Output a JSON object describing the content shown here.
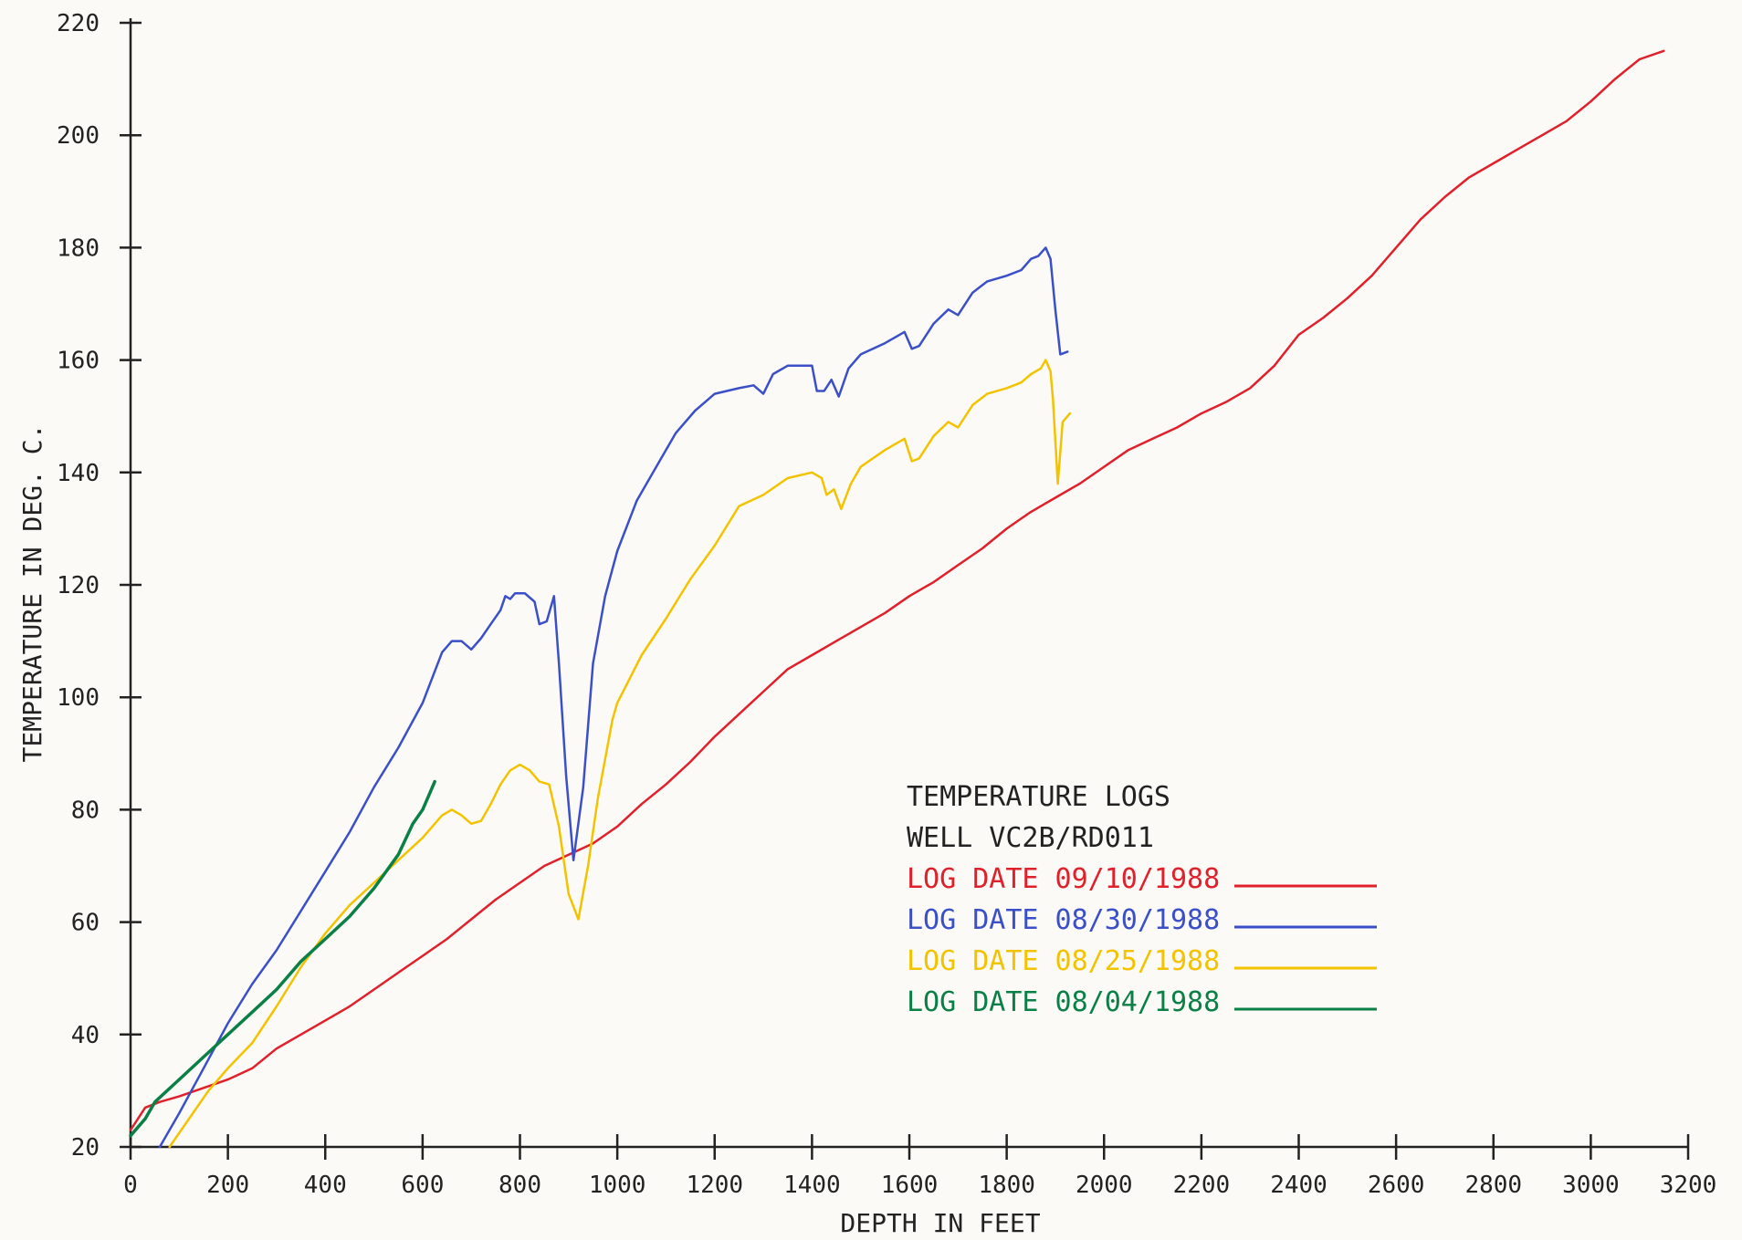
{
  "chart_data": {
    "type": "line",
    "xlabel": "DEPTH IN FEET",
    "ylabel": "TEMPERATURE IN DEG. C.",
    "xlim": [
      0,
      3200
    ],
    "ylim": [
      20,
      220
    ],
    "x_ticks": [
      0,
      200,
      400,
      600,
      800,
      1000,
      1200,
      1400,
      1600,
      1800,
      2000,
      2200,
      2400,
      2600,
      2800,
      3000,
      3200
    ],
    "y_ticks": [
      20,
      40,
      60,
      80,
      100,
      120,
      140,
      160,
      180,
      200,
      220
    ],
    "grid": false,
    "legend_title": [
      "TEMPERATURE LOGS",
      "WELL VC2B/RD011"
    ],
    "legend_placement": "lower-center-right",
    "series": [
      {
        "name": "LOG DATE 09/10/1988",
        "color": "#e0202a",
        "points": [
          [
            0,
            23
          ],
          [
            30,
            27
          ],
          [
            60,
            28
          ],
          [
            100,
            29
          ],
          [
            150,
            30.5
          ],
          [
            200,
            32
          ],
          [
            250,
            34
          ],
          [
            300,
            37.5
          ],
          [
            350,
            40
          ],
          [
            400,
            42.5
          ],
          [
            450,
            45
          ],
          [
            500,
            48
          ],
          [
            550,
            51
          ],
          [
            600,
            54
          ],
          [
            650,
            57
          ],
          [
            700,
            60.5
          ],
          [
            750,
            64
          ],
          [
            800,
            67
          ],
          [
            850,
            70
          ],
          [
            900,
            72
          ],
          [
            950,
            74
          ],
          [
            1000,
            77
          ],
          [
            1050,
            81
          ],
          [
            1100,
            84.5
          ],
          [
            1150,
            88.5
          ],
          [
            1200,
            93
          ],
          [
            1250,
            97
          ],
          [
            1300,
            101
          ],
          [
            1350,
            105
          ],
          [
            1400,
            107.5
          ],
          [
            1450,
            110
          ],
          [
            1500,
            112.5
          ],
          [
            1550,
            115
          ],
          [
            1600,
            118
          ],
          [
            1650,
            120.5
          ],
          [
            1700,
            123.5
          ],
          [
            1750,
            126.5
          ],
          [
            1800,
            130
          ],
          [
            1850,
            133
          ],
          [
            1900,
            135.5
          ],
          [
            1950,
            138
          ],
          [
            2000,
            141
          ],
          [
            2050,
            144
          ],
          [
            2100,
            146
          ],
          [
            2150,
            148
          ],
          [
            2200,
            150.5
          ],
          [
            2250,
            152.5
          ],
          [
            2300,
            155
          ],
          [
            2350,
            159
          ],
          [
            2400,
            164.5
          ],
          [
            2450,
            167.5
          ],
          [
            2500,
            171
          ],
          [
            2550,
            175
          ],
          [
            2600,
            180
          ],
          [
            2650,
            185
          ],
          [
            2700,
            189
          ],
          [
            2750,
            192.5
          ],
          [
            2800,
            195
          ],
          [
            2850,
            197.5
          ],
          [
            2900,
            200
          ],
          [
            2950,
            202.5
          ],
          [
            3000,
            206
          ],
          [
            3050,
            210
          ],
          [
            3100,
            213.5
          ],
          [
            3150,
            215
          ]
        ]
      },
      {
        "name": "LOG DATE 08/30/1988",
        "color": "#3b4fc8",
        "points": [
          [
            60,
            20
          ],
          [
            100,
            26
          ],
          [
            150,
            34
          ],
          [
            200,
            42
          ],
          [
            250,
            49
          ],
          [
            300,
            55
          ],
          [
            350,
            62
          ],
          [
            400,
            69
          ],
          [
            450,
            76
          ],
          [
            500,
            84
          ],
          [
            550,
            91
          ],
          [
            600,
            99
          ],
          [
            640,
            108
          ],
          [
            660,
            110
          ],
          [
            680,
            110
          ],
          [
            700,
            108.5
          ],
          [
            720,
            110.5
          ],
          [
            740,
            113
          ],
          [
            760,
            115.5
          ],
          [
            770,
            118
          ],
          [
            780,
            117.5
          ],
          [
            790,
            118.5
          ],
          [
            810,
            118.5
          ],
          [
            830,
            117
          ],
          [
            840,
            113
          ],
          [
            855,
            113.5
          ],
          [
            870,
            118
          ],
          [
            880,
            106
          ],
          [
            895,
            86
          ],
          [
            910,
            71
          ],
          [
            930,
            84
          ],
          [
            950,
            106
          ],
          [
            975,
            118
          ],
          [
            1000,
            126
          ],
          [
            1040,
            135
          ],
          [
            1080,
            141
          ],
          [
            1120,
            147
          ],
          [
            1160,
            151
          ],
          [
            1200,
            154
          ],
          [
            1250,
            155
          ],
          [
            1280,
            155.5
          ],
          [
            1300,
            154
          ],
          [
            1320,
            157.5
          ],
          [
            1350,
            159
          ],
          [
            1400,
            159
          ],
          [
            1410,
            154.5
          ],
          [
            1425,
            154.5
          ],
          [
            1440,
            156.5
          ],
          [
            1455,
            153.5
          ],
          [
            1475,
            158.5
          ],
          [
            1500,
            161
          ],
          [
            1550,
            163
          ],
          [
            1590,
            165
          ],
          [
            1605,
            162
          ],
          [
            1620,
            162.5
          ],
          [
            1650,
            166.5
          ],
          [
            1680,
            169
          ],
          [
            1700,
            168
          ],
          [
            1730,
            172
          ],
          [
            1760,
            174
          ],
          [
            1800,
            175
          ],
          [
            1830,
            176
          ],
          [
            1850,
            178
          ],
          [
            1865,
            178.5
          ],
          [
            1880,
            180
          ],
          [
            1890,
            178
          ],
          [
            1900,
            169
          ],
          [
            1910,
            161
          ],
          [
            1925,
            161.5
          ]
        ]
      },
      {
        "name": "LOG DATE 08/25/1988",
        "color": "#f3c300",
        "points": [
          [
            80,
            20
          ],
          [
            120,
            25
          ],
          [
            160,
            30
          ],
          [
            200,
            34
          ],
          [
            250,
            38.5
          ],
          [
            300,
            45
          ],
          [
            350,
            52
          ],
          [
            400,
            58
          ],
          [
            450,
            63
          ],
          [
            500,
            67
          ],
          [
            550,
            71
          ],
          [
            600,
            75
          ],
          [
            640,
            79
          ],
          [
            660,
            80
          ],
          [
            680,
            79
          ],
          [
            700,
            77.5
          ],
          [
            720,
            78
          ],
          [
            740,
            81
          ],
          [
            760,
            84.5
          ],
          [
            780,
            87
          ],
          [
            800,
            88
          ],
          [
            820,
            87
          ],
          [
            840,
            85
          ],
          [
            860,
            84.5
          ],
          [
            880,
            77
          ],
          [
            900,
            65
          ],
          [
            920,
            60.5
          ],
          [
            940,
            70
          ],
          [
            960,
            82
          ],
          [
            990,
            96
          ],
          [
            1000,
            99
          ],
          [
            1050,
            107.5
          ],
          [
            1100,
            114
          ],
          [
            1150,
            121
          ],
          [
            1200,
            127
          ],
          [
            1250,
            134
          ],
          [
            1300,
            136
          ],
          [
            1350,
            139
          ],
          [
            1400,
            140
          ],
          [
            1420,
            139
          ],
          [
            1430,
            136
          ],
          [
            1445,
            137
          ],
          [
            1460,
            133.5
          ],
          [
            1480,
            138
          ],
          [
            1500,
            141
          ],
          [
            1550,
            144
          ],
          [
            1590,
            146
          ],
          [
            1605,
            142
          ],
          [
            1620,
            142.5
          ],
          [
            1650,
            146.5
          ],
          [
            1680,
            149
          ],
          [
            1700,
            148
          ],
          [
            1730,
            152
          ],
          [
            1760,
            154
          ],
          [
            1800,
            155
          ],
          [
            1830,
            156
          ],
          [
            1850,
            157.5
          ],
          [
            1870,
            158.5
          ],
          [
            1880,
            160
          ],
          [
            1890,
            158
          ],
          [
            1895,
            153
          ],
          [
            1905,
            138
          ],
          [
            1915,
            149
          ],
          [
            1930,
            150.5
          ]
        ]
      },
      {
        "name": "LOG DATE 08/04/1988",
        "color": "#0a8046",
        "points": [
          [
            0,
            22
          ],
          [
            30,
            25
          ],
          [
            50,
            28
          ],
          [
            100,
            32
          ],
          [
            150,
            36
          ],
          [
            200,
            40
          ],
          [
            250,
            44
          ],
          [
            300,
            48
          ],
          [
            350,
            53
          ],
          [
            400,
            57
          ],
          [
            450,
            61
          ],
          [
            500,
            66
          ],
          [
            550,
            72
          ],
          [
            580,
            77.5
          ],
          [
            600,
            80
          ],
          [
            615,
            83
          ],
          [
            625,
            85
          ]
        ]
      }
    ]
  }
}
